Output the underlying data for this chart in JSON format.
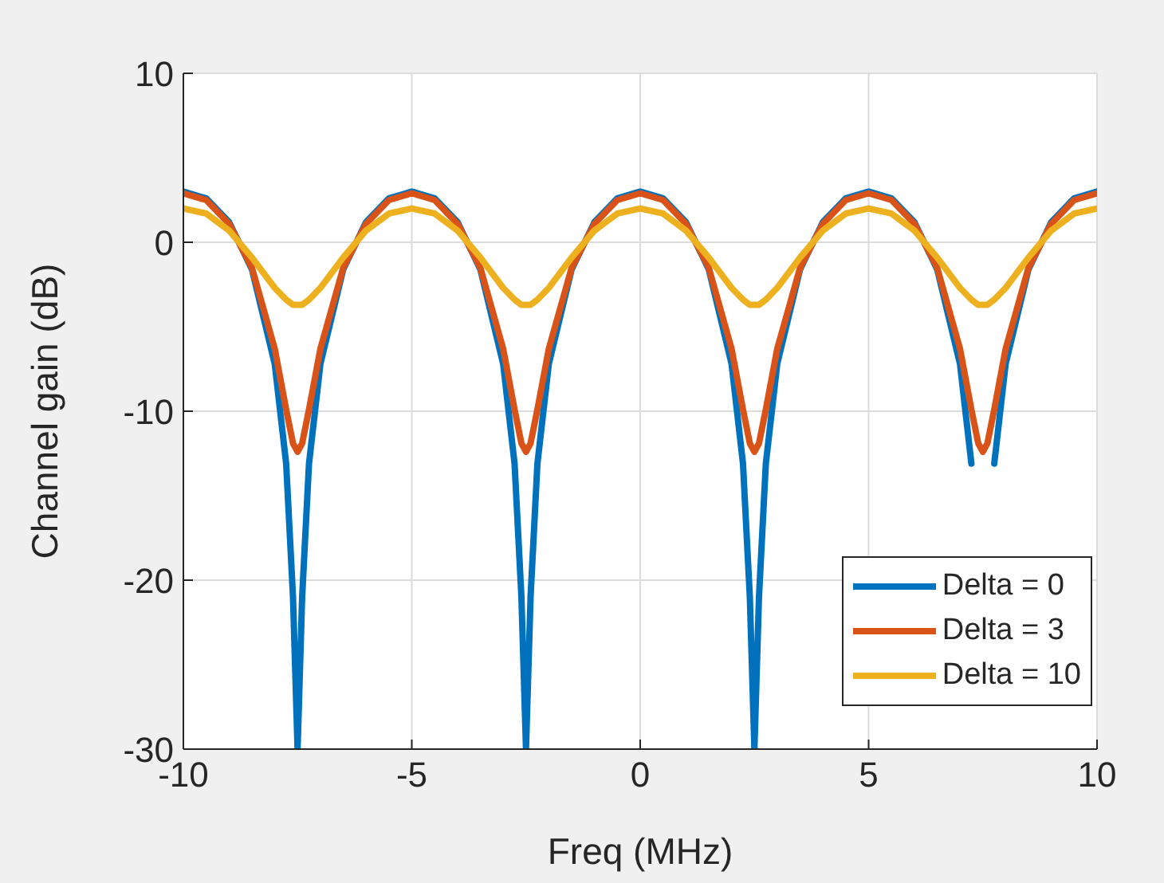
{
  "chart_data": {
    "type": "line",
    "xlabel": "Freq (MHz)",
    "ylabel": "Channel gain (dB)",
    "x": [
      -10,
      -9.5,
      -9,
      -8.5,
      -8,
      -7.75,
      -7.6,
      -7.5,
      -7.4,
      -7.25,
      -7,
      -6.5,
      -6,
      -5.5,
      -5,
      -4.5,
      -4,
      -3.5,
      -3,
      -2.75,
      -2.6,
      -2.5,
      -2.4,
      -2.25,
      -2,
      -1.5,
      -1,
      -0.5,
      0,
      0.5,
      1,
      1.5,
      2,
      2.25,
      2.4,
      2.5,
      2.6,
      2.75,
      3,
      3.5,
      4,
      4.5,
      5,
      5.5,
      6,
      6.5,
      7,
      7.25,
      7.4,
      7.5,
      7.6,
      7.75,
      8,
      8.5,
      9,
      9.5,
      10
    ],
    "series": [
      {
        "name": "Delta = 0",
        "color": "#0072bd",
        "values": [
          3.0,
          2.6,
          1.2,
          -1.6,
          -7.2,
          -13.1,
          -21.0,
          -30,
          -21.0,
          -13.1,
          -7.2,
          -1.6,
          1.2,
          2.6,
          3.0,
          2.6,
          1.2,
          -1.6,
          -7.2,
          -13.1,
          -21.0,
          -30,
          -21.0,
          -13.1,
          -7.2,
          -1.6,
          1.2,
          2.6,
          3.0,
          2.6,
          1.2,
          -1.6,
          -7.2,
          -13.1,
          -21.0,
          -30,
          -21.0,
          -13.1,
          -7.2,
          -1.6,
          1.2,
          2.6,
          3.0,
          2.6,
          1.2,
          -1.6,
          -7.2,
          -13.1,
          null,
          null,
          null,
          -13.1,
          -7.2,
          -1.6,
          1.2,
          2.6,
          3.0
        ]
      },
      {
        "name": "Delta = 3",
        "color": "#d95319",
        "values": [
          2.9,
          2.5,
          1.1,
          -1.5,
          -6.3,
          -9.9,
          -11.9,
          -12.4,
          -11.9,
          -9.9,
          -6.3,
          -1.5,
          1.1,
          2.5,
          2.9,
          2.5,
          1.1,
          -1.5,
          -6.3,
          -9.9,
          -11.9,
          -12.4,
          -11.9,
          -9.9,
          -6.3,
          -1.5,
          1.1,
          2.5,
          2.9,
          2.5,
          1.1,
          -1.5,
          -6.3,
          -9.9,
          -11.9,
          -12.4,
          -11.9,
          -9.9,
          -6.3,
          -1.5,
          1.1,
          2.5,
          2.9,
          2.5,
          1.1,
          -1.5,
          -6.3,
          -9.9,
          -11.9,
          -12.4,
          -11.9,
          -9.9,
          -6.3,
          -1.5,
          1.1,
          2.5,
          2.9
        ]
      },
      {
        "name": "Delta = 10",
        "color": "#edb120",
        "values": [
          2.0,
          1.7,
          0.7,
          -0.9,
          -2.7,
          -3.4,
          -3.7,
          -3.7,
          -3.7,
          -3.4,
          -2.7,
          -0.9,
          0.7,
          1.7,
          2.0,
          1.7,
          0.7,
          -0.9,
          -2.7,
          -3.4,
          -3.7,
          -3.7,
          -3.7,
          -3.4,
          -2.7,
          -0.9,
          0.7,
          1.7,
          2.0,
          1.7,
          0.7,
          -0.9,
          -2.7,
          -3.4,
          -3.7,
          -3.7,
          -3.7,
          -3.4,
          -2.7,
          -0.9,
          0.7,
          1.7,
          2.0,
          1.7,
          0.7,
          -0.9,
          -2.7,
          -3.4,
          -3.7,
          -3.7,
          -3.7,
          -3.4,
          -2.7,
          -0.9,
          0.7,
          1.7,
          2.0
        ]
      }
    ],
    "xlim": [
      -10,
      10
    ],
    "xticks": [
      -10,
      -5,
      0,
      5,
      10
    ],
    "ylim": [
      -30,
      10
    ],
    "yticks": [
      -30,
      -20,
      -10,
      0,
      10
    ],
    "grid": true,
    "legend": "bottom right",
    "marker": "none",
    "line_style": "solid"
  }
}
